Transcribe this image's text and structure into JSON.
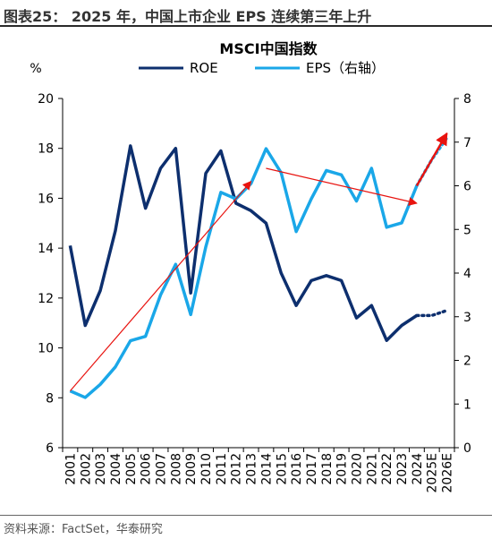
{
  "header": {
    "title": "图表25：  2025 年，中国上市企业 EPS 连续第三年上升"
  },
  "footer": {
    "source": "资料来源：FactSet，华泰研究"
  },
  "colors": {
    "roe": "#0d2f6e",
    "eps": "#1aa7e8",
    "arrow": "#e8130f",
    "axis": "#000000"
  },
  "chart_data": {
    "type": "line",
    "title": "MSCI中国指数",
    "left_axis_unit": "%",
    "x": [
      "2001",
      "2002",
      "2003",
      "2004",
      "2005",
      "2006",
      "2007",
      "2008",
      "2009",
      "2010",
      "2011",
      "2012",
      "2013",
      "2014",
      "2015",
      "2016",
      "2017",
      "2018",
      "2019",
      "2020",
      "2021",
      "2022",
      "2023",
      "2024",
      "2025E",
      "2026E"
    ],
    "y_left": {
      "min": 6,
      "max": 20,
      "ticks": [
        6,
        8,
        10,
        12,
        14,
        16,
        18,
        20
      ]
    },
    "y_right": {
      "min": 0,
      "max": 8,
      "ticks": [
        0,
        1,
        2,
        3,
        4,
        5,
        6,
        7,
        8
      ]
    },
    "series": [
      {
        "name": "ROE",
        "axis": "left",
        "values": [
          14.1,
          10.9,
          12.3,
          14.7,
          18.1,
          15.6,
          17.2,
          18.0,
          12.2,
          17.0,
          17.9,
          15.8,
          15.5,
          15.0,
          13.0,
          11.7,
          12.7,
          12.9,
          12.7,
          11.2,
          11.7,
          10.3,
          10.9,
          11.3,
          11.3,
          11.5
        ],
        "forecast_from_index": 23
      },
      {
        "name": "EPS（右轴）",
        "axis": "right",
        "values": [
          1.3,
          1.15,
          1.45,
          1.85,
          2.45,
          2.55,
          3.5,
          4.2,
          3.05,
          4.6,
          5.85,
          5.7,
          6.05,
          6.85,
          6.3,
          4.95,
          5.7,
          6.35,
          6.25,
          5.65,
          6.4,
          5.05,
          5.15,
          6.0,
          6.6,
          7.1
        ],
        "forecast_from_index": 23
      }
    ],
    "annotations": [
      {
        "type": "arrow",
        "from": [
          "2001",
          1.3
        ],
        "to": [
          "2013",
          6.1
        ],
        "axis": "right",
        "style": "thin"
      },
      {
        "type": "arrow",
        "from": [
          "2014",
          6.4
        ],
        "to": [
          "2024",
          5.6
        ],
        "axis": "right",
        "style": "thin"
      },
      {
        "type": "arrow",
        "from": [
          "2024",
          6.0
        ],
        "to": [
          "2026E",
          7.2
        ],
        "axis": "right",
        "style": "bold"
      }
    ],
    "legend_position": "top",
    "grid": false
  }
}
